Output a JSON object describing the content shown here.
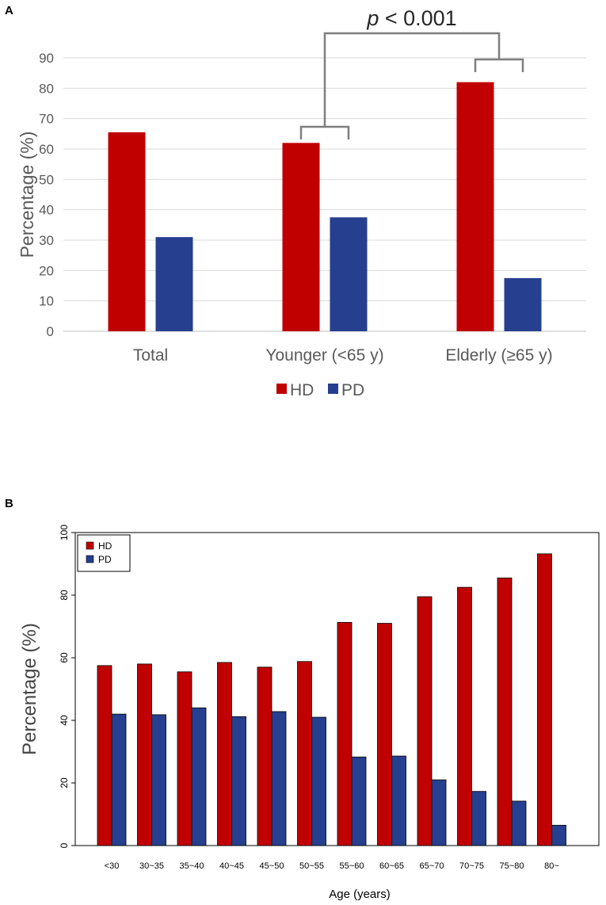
{
  "panels": {
    "a_label": "A",
    "b_label": "B"
  },
  "colors": {
    "hd": "#c00000",
    "pd": "#263f8e",
    "grid": "#d9d9d9",
    "bracket": "#7f7f7f",
    "text": "#595959"
  },
  "chart_data": [
    {
      "type": "bar",
      "panel": "A",
      "title": "",
      "xlabel": "",
      "ylabel": "Percentage (%)",
      "ylim": [
        0,
        90
      ],
      "yticks": [
        "0",
        "10",
        "20",
        "30",
        "40",
        "50",
        "60",
        "70",
        "80",
        "90"
      ],
      "grid": true,
      "categories": [
        "Total",
        "Younger (<65 y)",
        "Elderly (≥65 y)"
      ],
      "series": [
        {
          "name": "HD",
          "values": [
            65.5,
            62.0,
            82.0
          ]
        },
        {
          "name": "PD",
          "values": [
            31.0,
            37.5,
            17.5
          ]
        }
      ],
      "legend": [
        "HD",
        "PD"
      ],
      "legend_position": "bottom-center",
      "annotation": {
        "p_symbol": "p",
        "p_rest": " < 0.001",
        "between": [
          "Younger (<65 y)",
          "Elderly (≥65 y)"
        ]
      }
    },
    {
      "type": "bar",
      "panel": "B",
      "title": "",
      "xlabel": "Age (years)",
      "ylabel": "Percentage (%)",
      "ylim": [
        0,
        100
      ],
      "yticks": [
        "0",
        "20",
        "40",
        "60",
        "80",
        "100"
      ],
      "grid": false,
      "categories": [
        "<30",
        "30~35",
        "35~40",
        "40~45",
        "45~50",
        "50~55",
        "55~60",
        "60~65",
        "65~70",
        "70~75",
        "75~80",
        "80~"
      ],
      "series": [
        {
          "name": "HD",
          "values": [
            57.5,
            58.0,
            55.5,
            58.5,
            57.0,
            58.8,
            71.3,
            71.0,
            79.5,
            82.5,
            85.5,
            93.2
          ]
        },
        {
          "name": "PD",
          "values": [
            42.0,
            41.8,
            44.0,
            41.2,
            42.8,
            41.0,
            28.3,
            28.6,
            21.0,
            17.3,
            14.2,
            6.5
          ]
        }
      ],
      "legend": [
        "HD",
        "PD"
      ],
      "legend_position": "top-left"
    }
  ]
}
